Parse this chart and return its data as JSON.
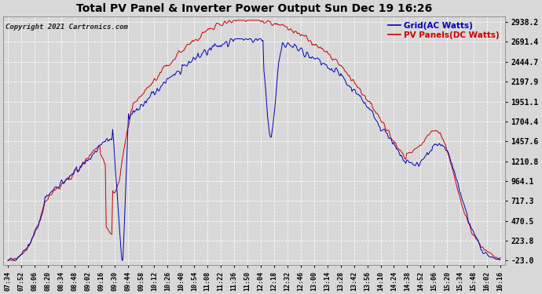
{
  "title": "Total PV Panel & Inverter Power Output Sun Dec 19 16:26",
  "copyright": "Copyright 2021 Cartronics.com",
  "legend_blue": "Grid(AC Watts)",
  "legend_red": "PV Panels(DC Watts)",
  "yticks": [
    2938.2,
    2691.4,
    2444.7,
    2197.9,
    1951.1,
    1704.4,
    1457.6,
    1210.8,
    964.1,
    717.3,
    470.5,
    223.8,
    -23.0
  ],
  "ylim": [
    -23.0,
    2938.2
  ],
  "xtick_labels": [
    "07:34",
    "07:52",
    "08:06",
    "08:20",
    "08:34",
    "08:48",
    "09:02",
    "09:16",
    "09:30",
    "09:44",
    "09:58",
    "10:12",
    "10:26",
    "10:40",
    "10:54",
    "11:08",
    "11:22",
    "11:36",
    "11:50",
    "12:04",
    "12:18",
    "12:32",
    "12:46",
    "13:00",
    "13:14",
    "13:28",
    "13:42",
    "13:56",
    "14:10",
    "14:24",
    "14:38",
    "14:52",
    "15:06",
    "15:20",
    "15:34",
    "15:48",
    "16:02",
    "16:16"
  ],
  "bg_color": "#d8d8d8",
  "grid_color": "#ffffff",
  "line_color_blue": "#0000bb",
  "line_color_red": "#cc0000",
  "title_color": "#000000"
}
